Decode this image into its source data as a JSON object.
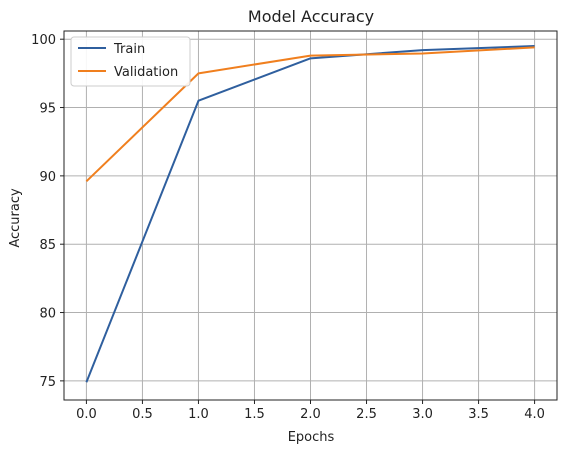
{
  "chart_data": {
    "type": "line",
    "title": "Model Accuracy",
    "xlabel": "Epochs",
    "ylabel": "Accuracy",
    "x": [
      0,
      1,
      2,
      3,
      4
    ],
    "series": [
      {
        "name": "Train",
        "color": "#2f5f9e",
        "values": [
          74.9,
          95.5,
          98.6,
          99.2,
          99.5
        ]
      },
      {
        "name": "Validation",
        "color": "#f07f1e",
        "values": [
          89.6,
          97.5,
          98.8,
          98.95,
          99.4
        ]
      }
    ],
    "xlim": [
      -0.2,
      4.2
    ],
    "ylim": [
      73.6,
      100.6
    ],
    "xticks": [
      0.0,
      0.5,
      1.0,
      1.5,
      2.0,
      2.5,
      3.0,
      3.5,
      4.0
    ],
    "xtick_labels": [
      "0.0",
      "0.5",
      "1.0",
      "1.5",
      "2.0",
      "2.5",
      "3.0",
      "3.5",
      "4.0"
    ],
    "yticks": [
      75,
      80,
      85,
      90,
      95,
      100
    ],
    "ytick_labels": [
      "75",
      "80",
      "85",
      "90",
      "95",
      "100"
    ],
    "grid": true,
    "legend_position": "top-left"
  }
}
